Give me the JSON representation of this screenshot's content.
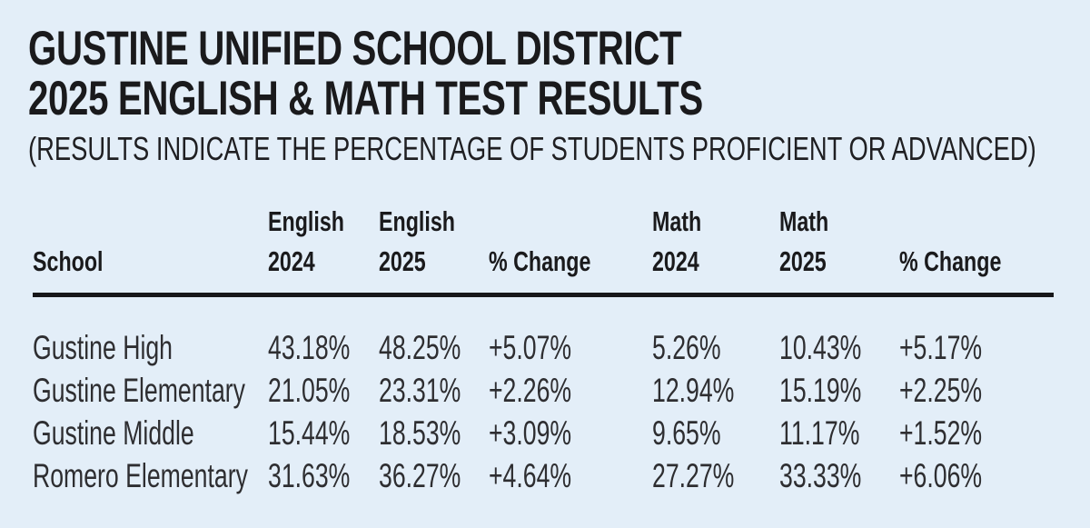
{
  "page": {
    "title_line1": "GUSTINE UNIFIED SCHOOL DISTRICT",
    "title_line2": "2025 ENGLISH & MATH TEST RESULTS",
    "subtitle": "(RESULTS INDICATE THE PERCENTAGE OF STUDENTS PROFICIENT OR ADVANCED)"
  },
  "colors": {
    "background": "#e3eef8",
    "text": "#1a1a1c",
    "data_text": "#2e2e31",
    "rule": "#17171a"
  },
  "table": {
    "headers": [
      {
        "line1": "",
        "line2": "School"
      },
      {
        "line1": "English",
        "line2": "2024"
      },
      {
        "line1": "English",
        "line2": "2025"
      },
      {
        "line1": "",
        "line2": "% Change"
      },
      {
        "line1": "Math",
        "line2": "2024"
      },
      {
        "line1": "Math",
        "line2": "2025"
      },
      {
        "line1": "",
        "line2": "% Change"
      }
    ],
    "rows": [
      [
        "Gustine High",
        "43.18%",
        "48.25%",
        "+5.07%",
        "5.26%",
        "10.43%",
        "+5.17%"
      ],
      [
        "Gustine Elementary",
        "21.05%",
        "23.31%",
        "+2.26%",
        "12.94%",
        "15.19%",
        "+2.25%"
      ],
      [
        "Gustine Middle",
        "15.44%",
        "18.53%",
        "+3.09%",
        "9.65%",
        "11.17%",
        "+1.52%"
      ],
      [
        "Romero Elementary",
        "31.63%",
        "36.27%",
        "+4.64%",
        "27.27%",
        "33.33%",
        "+6.06%"
      ]
    ]
  },
  "chart_data": {
    "type": "table",
    "title": "GUSTINE UNIFIED SCHOOL DISTRICT 2025 ENGLISH & MATH TEST RESULTS",
    "subtitle": "(RESULTS INDICATE THE PERCENTAGE OF STUDENTS PROFICIENT OR ADVANCED)",
    "columns": [
      "School",
      "English 2024",
      "English 2025",
      "% Change",
      "Math 2024",
      "Math 2025",
      "% Change"
    ],
    "rows": [
      [
        "Gustine High",
        43.18,
        48.25,
        5.07,
        5.26,
        10.43,
        5.17
      ],
      [
        "Gustine Elementary",
        21.05,
        23.31,
        2.26,
        12.94,
        15.19,
        2.25
      ],
      [
        "Gustine Middle",
        15.44,
        18.53,
        3.09,
        9.65,
        11.17,
        1.52
      ],
      [
        "Romero Elementary",
        31.63,
        36.27,
        4.64,
        27.27,
        33.33,
        6.06
      ]
    ]
  }
}
